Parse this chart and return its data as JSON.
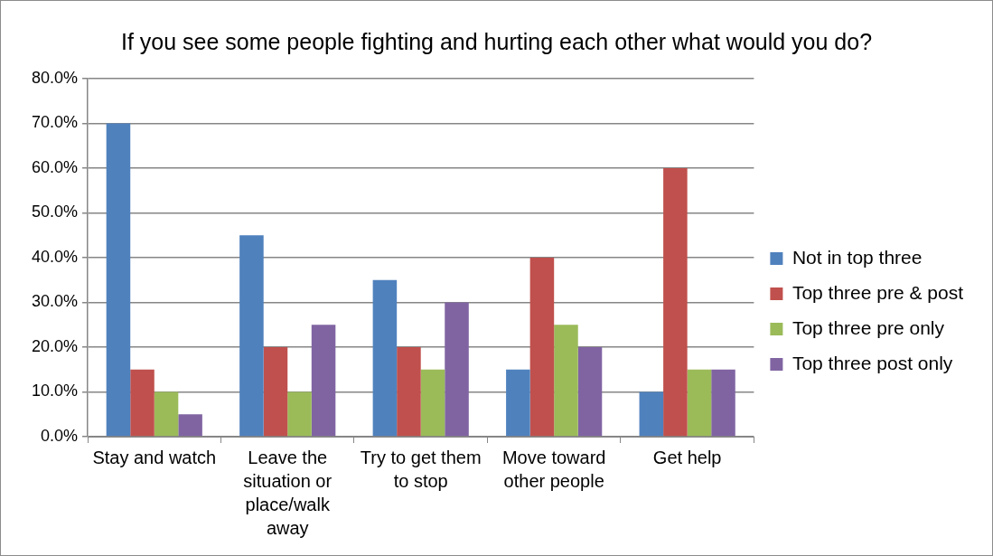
{
  "chart_data": {
    "type": "bar",
    "title": "If you see some people fighting and hurting each other what would you do?",
    "categories": [
      "Stay and watch",
      "Leave the situation or place/walk away",
      "Try to get them to stop",
      "Move toward other people",
      "Get help"
    ],
    "series": [
      {
        "name": "Not in top three",
        "color": "#4f81bd",
        "values": [
          70,
          45,
          35,
          15,
          10
        ]
      },
      {
        "name": "Top three pre & post",
        "color": "#c0504d",
        "values": [
          15,
          20,
          20,
          40,
          60
        ]
      },
      {
        "name": "Top three pre only",
        "color": "#9bbb59",
        "values": [
          10,
          10,
          15,
          25,
          15
        ]
      },
      {
        "name": "Top three post only",
        "color": "#8064a2",
        "values": [
          5,
          25,
          30,
          20,
          15
        ]
      }
    ],
    "ylim": [
      0,
      80
    ],
    "yticks": [
      {
        "value": 0,
        "label": "0.0%"
      },
      {
        "value": 10,
        "label": "10.0%"
      },
      {
        "value": 20,
        "label": "20.0%"
      },
      {
        "value": 30,
        "label": "30.0%"
      },
      {
        "value": 40,
        "label": "40.0%"
      },
      {
        "value": 50,
        "label": "50.0%"
      },
      {
        "value": 60,
        "label": "60.0%"
      },
      {
        "value": 70,
        "label": "70.0%"
      },
      {
        "value": 80,
        "label": "80.0%"
      }
    ],
    "grid": "y",
    "legend": "right"
  }
}
